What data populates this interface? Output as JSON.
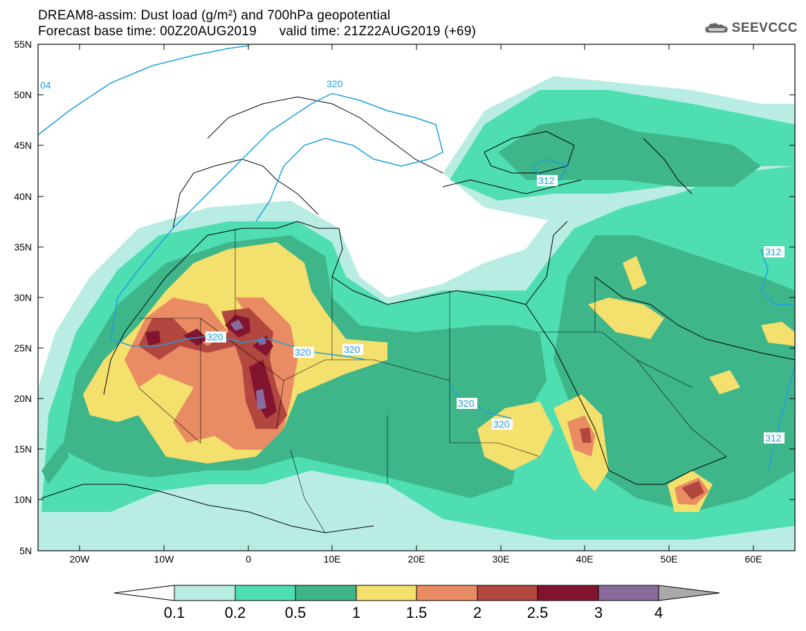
{
  "header": {
    "line1": "DREAM8-assim: Dust load (g/m²) and 700hPa geopotential",
    "line2": "Forecast base time: 00Z20AUG2019      valid time: 21Z22AUG2019 (+69)"
  },
  "logo": {
    "text": "SEEVCCC",
    "icon": "cloud-icon"
  },
  "map": {
    "lat_labels": [
      "55N",
      "50N",
      "45N",
      "40N",
      "35N",
      "30N",
      "25N",
      "20N",
      "15N",
      "10N",
      "5N"
    ],
    "lon_labels": [
      "20W",
      "10W",
      "0",
      "10E",
      "20E",
      "30E",
      "40E",
      "50E",
      "60E"
    ],
    "contour_labels": [
      "320",
      "320",
      "320",
      "320",
      "320",
      "320",
      "312",
      "312",
      "312",
      "04"
    ]
  },
  "colorbar": {
    "labels": [
      "0.1",
      "0.2",
      "0.5",
      "1",
      "1.5",
      "2",
      "2.5",
      "3",
      "4"
    ],
    "colors": [
      "#b9ede4",
      "#4fdeb2",
      "#3fb58a",
      "#f4e06c",
      "#ea8c63",
      "#b2473f",
      "#82142f",
      "#8a6a9c",
      "#a9a9a9"
    ]
  }
}
